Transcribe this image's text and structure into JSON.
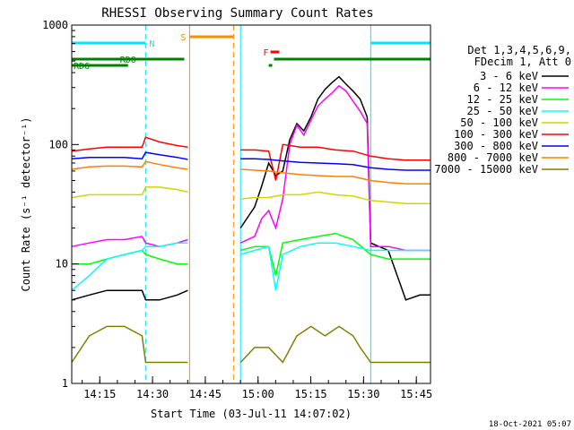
{
  "chart_data": {
    "type": "line",
    "title": "RHESSI Observing Summary Count Rates",
    "xlabel": "Start Time (03-Jul-11 14:07:02)",
    "ylabel": "Count Rate (s⁻¹ detector⁻¹)",
    "y_scale": "log",
    "ylim": [
      1,
      1000
    ],
    "xlim_minutes": [
      0,
      102
    ],
    "x_tick_labels": [
      "14:15",
      "14:30",
      "14:45",
      "15:00",
      "15:15",
      "15:30",
      "15:45"
    ],
    "x_tick_minutes": [
      7.97,
      22.97,
      37.97,
      52.97,
      67.97,
      82.97,
      97.97
    ],
    "y_tick_labels": [
      "1",
      "10",
      "100",
      "1000"
    ],
    "y_tick_values": [
      1,
      10,
      100,
      1000
    ],
    "grid": false,
    "legend_position": "right",
    "legend_header": [
      "Det 1,3,4,5,6,9,",
      "FDecim 1, Att 0"
    ],
    "date_stamp": "18-Oct-2021 05:07",
    "flag_bars": [
      {
        "label": "N",
        "color": "#00e6ff",
        "segments": [
          [
            0,
            21
          ],
          [
            85,
            102
          ]
        ]
      },
      {
        "label": "S",
        "color": "#ff8c00",
        "segments": [
          [
            33.5,
            46
          ]
        ]
      },
      {
        "label": "F",
        "color": "#ff0000",
        "segments": [
          [
            56.5,
            59
          ]
        ]
      },
      {
        "label": "RD0",
        "color": "#008000",
        "segments": [
          [
            0,
            32
          ],
          [
            57.5,
            102
          ]
        ]
      },
      {
        "label": "RD6",
        "color": "#008000",
        "segments": [
          [
            0,
            16
          ],
          [
            56,
            57
          ]
        ]
      }
    ],
    "vertical_markers": [
      {
        "minute": 0,
        "color": "#00e6ff",
        "style": "solid"
      },
      {
        "minute": 21,
        "color": "#00e6ff",
        "style": "dashed"
      },
      {
        "minute": 33.5,
        "color": "#ff8c00",
        "style": "solid"
      },
      {
        "minute": 46,
        "color": "#ff8c00",
        "style": "dashed"
      },
      {
        "minute": 48,
        "color": "#00e6ff",
        "style": "solid"
      },
      {
        "minute": 85,
        "color": "#00e6ff",
        "style": "solid"
      },
      {
        "minute": 102,
        "color": "#00e6ff",
        "style": "dashed"
      }
    ],
    "data_gaps_minutes": [
      [
        34,
        48
      ]
    ],
    "series": [
      {
        "name": "3 - 6 keV",
        "color": "#000000",
        "x": [
          0,
          5,
          10,
          15,
          20,
          21,
          25,
          30,
          33,
          48,
          52,
          54,
          56,
          58,
          60,
          62,
          64,
          66,
          68,
          70,
          72,
          74,
          76,
          78,
          80,
          82,
          84,
          85,
          90,
          95,
          99,
          102
        ],
        "y": [
          5,
          5.5,
          6,
          6,
          6,
          5,
          5,
          5.5,
          6,
          20,
          30,
          45,
          70,
          55,
          60,
          110,
          150,
          130,
          170,
          240,
          290,
          330,
          370,
          320,
          280,
          240,
          170,
          15,
          13,
          5,
          5.5,
          5.5
        ]
      },
      {
        "name": "6 - 12 keV",
        "color": "#ff00ff",
        "x": [
          0,
          5,
          10,
          15,
          20,
          21,
          25,
          30,
          33,
          48,
          52,
          54,
          56,
          58,
          60,
          62,
          64,
          66,
          68,
          70,
          72,
          74,
          76,
          78,
          80,
          82,
          84,
          85,
          90,
          95,
          99,
          102
        ],
        "y": [
          14,
          15,
          16,
          16,
          17,
          15,
          14,
          15,
          16,
          15,
          17,
          24,
          28,
          20,
          35,
          100,
          145,
          120,
          160,
          210,
          240,
          270,
          310,
          280,
          230,
          190,
          150,
          14,
          14,
          13,
          13,
          13
        ]
      },
      {
        "name": "12 - 25 keV",
        "color": "#00ff00",
        "x": [
          0,
          5,
          10,
          15,
          20,
          21,
          25,
          30,
          33,
          48,
          52,
          56,
          58,
          60,
          65,
          70,
          75,
          80,
          85,
          90,
          95,
          99,
          102
        ],
        "y": [
          10,
          10,
          11,
          12,
          13,
          12,
          11,
          10,
          10,
          13,
          14,
          14,
          8,
          15,
          16,
          17,
          18,
          16,
          12,
          11,
          11,
          11,
          11
        ]
      },
      {
        "name": "25 - 50 keV",
        "color": "#00ffff",
        "x": [
          0,
          5,
          10,
          15,
          20,
          21,
          25,
          30,
          33,
          48,
          52,
          56,
          58,
          60,
          65,
          70,
          75,
          80,
          85,
          90,
          95,
          99,
          102
        ],
        "y": [
          6,
          8,
          11,
          12,
          13,
          14,
          14,
          15,
          15,
          12,
          13,
          14,
          6,
          12,
          14,
          15,
          15,
          14,
          13,
          13,
          13,
          13,
          13
        ]
      },
      {
        "name": "50 - 100 keV",
        "color": "#d4d400",
        "x": [
          0,
          5,
          10,
          15,
          20,
          21,
          25,
          30,
          33,
          48,
          52,
          56,
          60,
          65,
          70,
          75,
          80,
          85,
          90,
          95,
          99,
          102
        ],
        "y": [
          36,
          38,
          38,
          38,
          38,
          44,
          44,
          42,
          40,
          35,
          36,
          36,
          38,
          38,
          40,
          38,
          37,
          34,
          33,
          32,
          32,
          32
        ]
      },
      {
        "name": "100 - 300 keV",
        "color": "#ff0000",
        "x": [
          0,
          5,
          10,
          15,
          20,
          21,
          25,
          30,
          33,
          48,
          52,
          56,
          58,
          60,
          65,
          70,
          75,
          80,
          85,
          90,
          95,
          99,
          102
        ],
        "y": [
          88,
          92,
          95,
          95,
          95,
          115,
          105,
          98,
          95,
          90,
          90,
          88,
          50,
          100,
          95,
          95,
          90,
          88,
          80,
          76,
          74,
          74,
          74
        ]
      },
      {
        "name": "300 - 800 keV",
        "color": "#0000ff",
        "x": [
          0,
          5,
          10,
          15,
          20,
          21,
          25,
          30,
          33,
          48,
          52,
          56,
          60,
          65,
          70,
          75,
          80,
          85,
          90,
          95,
          99,
          102
        ],
        "y": [
          76,
          78,
          78,
          78,
          76,
          86,
          82,
          78,
          75,
          76,
          76,
          75,
          73,
          71,
          70,
          69,
          68,
          64,
          62,
          61,
          61,
          61
        ]
      },
      {
        "name": "800 - 7000 keV",
        "color": "#ff8000",
        "x": [
          0,
          5,
          10,
          15,
          20,
          21,
          25,
          30,
          33,
          48,
          52,
          56,
          60,
          65,
          70,
          75,
          80,
          85,
          90,
          95,
          99,
          102
        ],
        "y": [
          62,
          65,
          66,
          66,
          65,
          72,
          68,
          64,
          62,
          62,
          61,
          60,
          58,
          56,
          55,
          54,
          54,
          50,
          48,
          47,
          47,
          47
        ]
      },
      {
        "name": "7000 - 15000 keV",
        "color": "#808000",
        "x": [
          0,
          5,
          10,
          15,
          20,
          21,
          25,
          30,
          33,
          48,
          52,
          56,
          60,
          64,
          68,
          72,
          76,
          80,
          82,
          85,
          90,
          95,
          99,
          102
        ],
        "y": [
          1.5,
          2.5,
          3,
          3,
          2.5,
          1.5,
          1.5,
          1.5,
          1.5,
          1.5,
          2,
          2,
          1.5,
          2.5,
          3,
          2.5,
          3,
          2.5,
          2,
          1.5,
          1.5,
          1.5,
          1.5,
          1.5
        ]
      }
    ]
  }
}
